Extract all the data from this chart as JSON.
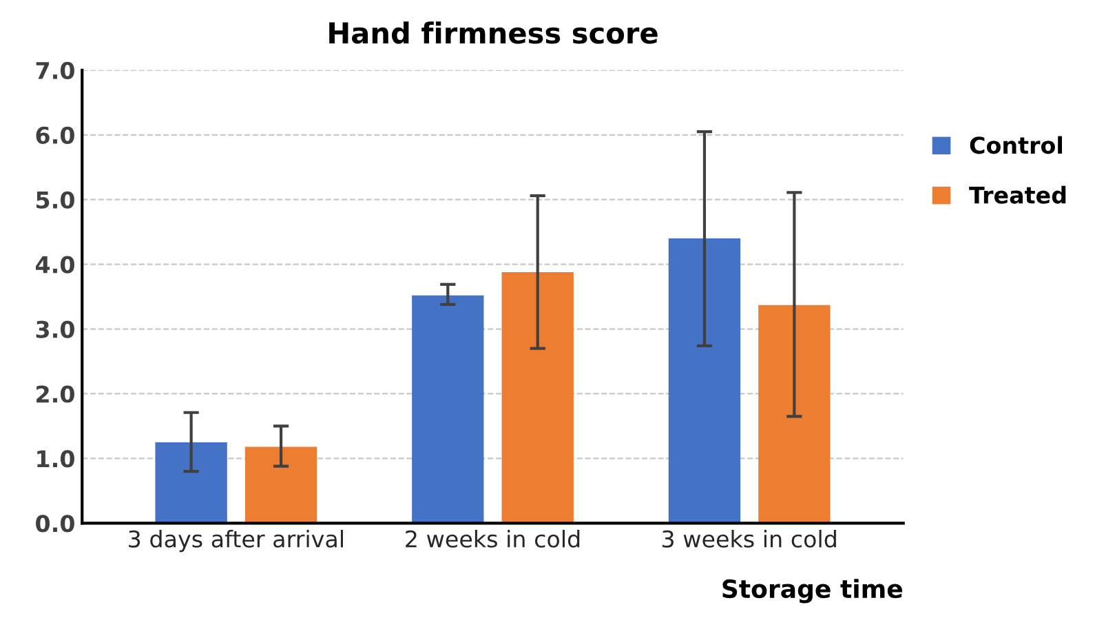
{
  "chart_data": {
    "type": "bar",
    "title": "Hand firmness score",
    "xlabel": "Storage time",
    "categories": [
      "3 days after arrival",
      "2 weeks in cold",
      "3 weeks in cold"
    ],
    "series": [
      {
        "name": "Control",
        "color": "#4472c4",
        "values": [
          1.25,
          3.52,
          4.4
        ],
        "errors": [
          [
            0.8,
            1.71
          ],
          [
            3.38,
            3.69
          ],
          [
            2.74,
            6.05
          ]
        ]
      },
      {
        "name": "Treated",
        "color": "#ed7d31",
        "values": [
          1.18,
          3.88,
          3.37
        ],
        "errors": [
          [
            0.88,
            1.5
          ],
          [
            2.7,
            5.06
          ],
          [
            1.65,
            5.11
          ]
        ]
      }
    ],
    "ylim": [
      0,
      7
    ],
    "yticks": [
      {
        "value": 0,
        "label": "0.0"
      },
      {
        "value": 1,
        "label": "1.0"
      },
      {
        "value": 2,
        "label": "2.0"
      },
      {
        "value": 3,
        "label": "3.0"
      },
      {
        "value": 4,
        "label": "4.0"
      },
      {
        "value": 5,
        "label": "5.0"
      },
      {
        "value": 6,
        "label": "6.0"
      },
      {
        "value": 7,
        "label": "7.0"
      }
    ],
    "grid": "y",
    "legend": "right"
  }
}
